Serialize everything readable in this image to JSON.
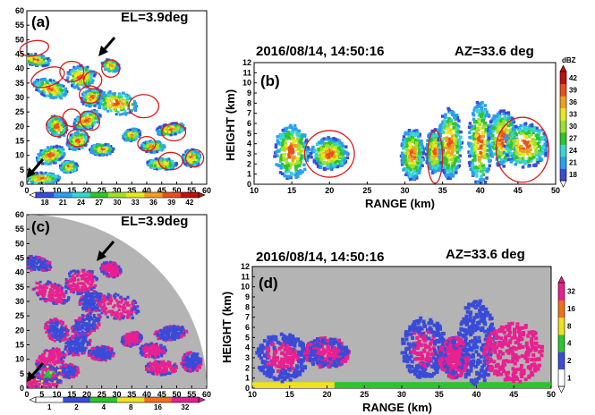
{
  "figure": {
    "panels": {
      "a": {
        "label": "(a)",
        "elevation": "EL=3.9deg"
      },
      "b": {
        "label": "(b)",
        "datetime": "2016/08/14, 14:50:16",
        "azimuth": "AZ=33.6 deg",
        "ylabel": "HEIGHT (km)",
        "xlabel": "RANGE (km)",
        "unit": "dBZ"
      },
      "c": {
        "label": "(c)",
        "elevation": "EL=3.9deg"
      },
      "d": {
        "label": "(d)",
        "datetime": "2016/08/14, 14:50:16",
        "azimuth": "AZ=33.6 deg",
        "ylabel": "HEIGHT (km)",
        "xlabel": "RANGE (km)"
      }
    },
    "colors": {
      "bg_gray": "#b4b4b4",
      "reflectivity": [
        "#3a4bd8",
        "#2aa0ee",
        "#36d6d0",
        "#2ec42e",
        "#9fe02c",
        "#e8e820",
        "#f0a020",
        "#e85020",
        "#c01010"
      ],
      "category": [
        "#3a4bd8",
        "#2ec42e",
        "#f0e020",
        "#f07020",
        "#e82090"
      ],
      "ellipse": "#d81b1b",
      "arrow": "#000000"
    }
  },
  "chart_data": [
    {
      "type": "heatmap",
      "panel": "a",
      "xlim": [
        0,
        60
      ],
      "ylim": [
        0,
        60
      ],
      "xticks": [
        "0",
        "5",
        "10",
        "15",
        "20",
        "25",
        "30",
        "35",
        "40",
        "45",
        "50",
        "55",
        "60"
      ],
      "yticks": [
        "0",
        "5",
        "10",
        "15",
        "20",
        "25",
        "30",
        "35",
        "40",
        "45",
        "50",
        "55",
        "60"
      ],
      "colorbar_ticks": [
        "18",
        "21",
        "24",
        "27",
        "30",
        "33",
        "36",
        "39",
        "42"
      ]
    },
    {
      "type": "heatmap",
      "panel": "b",
      "xlim": [
        10,
        50
      ],
      "ylim": [
        0,
        12
      ],
      "xticks": [
        "10",
        "15",
        "20",
        "25",
        "30",
        "35",
        "40",
        "45",
        "50"
      ],
      "yticks": [
        "0",
        "1",
        "2",
        "3",
        "4",
        "5",
        "6",
        "7",
        "8",
        "9",
        "10",
        "11",
        "12"
      ],
      "colorbar_ticks": [
        "18",
        "21",
        "24",
        "27",
        "30",
        "33",
        "36",
        "39",
        "42"
      ]
    },
    {
      "type": "heatmap",
      "panel": "c",
      "xlim": [
        0,
        60
      ],
      "ylim": [
        0,
        60
      ],
      "xticks": [
        "0",
        "5",
        "10",
        "15",
        "20",
        "25",
        "30",
        "35",
        "40",
        "45",
        "50",
        "55",
        "60"
      ],
      "yticks": [
        "0",
        "5",
        "10",
        "15",
        "20",
        "25",
        "30",
        "35",
        "40",
        "45",
        "50",
        "55",
        "60"
      ],
      "colorbar_ticks": [
        "1",
        "2",
        "4",
        "8",
        "16",
        "32"
      ]
    },
    {
      "type": "heatmap",
      "panel": "d",
      "xlim": [
        10,
        50
      ],
      "ylim": [
        0,
        12
      ],
      "xticks": [
        "10",
        "15",
        "20",
        "25",
        "30",
        "35",
        "40",
        "45",
        "50"
      ],
      "yticks": [
        "0",
        "1",
        "2",
        "3",
        "4",
        "5",
        "6",
        "7",
        "8",
        "9",
        "10",
        "11",
        "12"
      ],
      "colorbar_ticks": [
        "1",
        "2",
        "4",
        "8",
        "16",
        "32"
      ]
    }
  ]
}
